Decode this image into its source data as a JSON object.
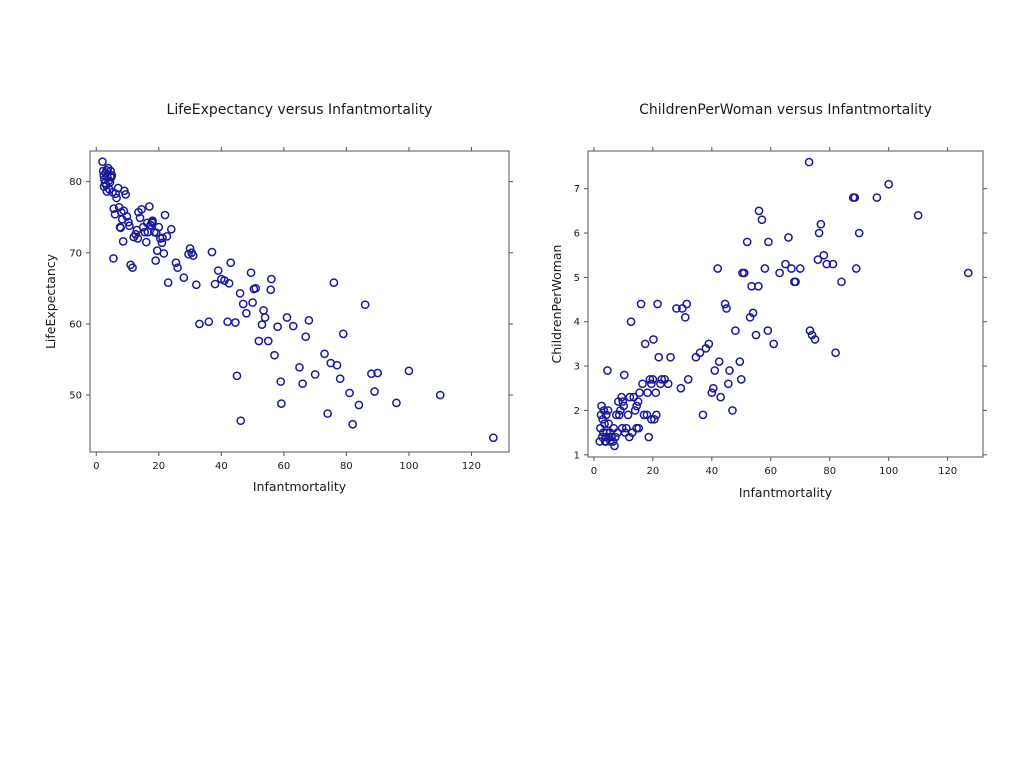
{
  "chart_data": [
    {
      "type": "scatter",
      "title": "LifeExpectancy versus Infantmortality",
      "xlabel": "Infantmortality",
      "ylabel": "LifeExpectancy",
      "xlim": [
        -2,
        132
      ],
      "ylim": [
        42,
        84.3
      ],
      "xticks": [
        "0",
        "20",
        "40",
        "60",
        "80",
        "100",
        "120"
      ],
      "yticks": [
        "50",
        "60",
        "70",
        "80"
      ],
      "marker_color": "#1a1a99",
      "grid": false,
      "points": [
        [
          2,
          82.8
        ],
        [
          2.2,
          81.5
        ],
        [
          2.4,
          80.9
        ],
        [
          2.6,
          80.3
        ],
        [
          2.8,
          79.8
        ],
        [
          3,
          81.2
        ],
        [
          3.2,
          79.5
        ],
        [
          3.4,
          78.6
        ],
        [
          3.6,
          80.6
        ],
        [
          3.8,
          81.9
        ],
        [
          4,
          80.1
        ],
        [
          4.2,
          78.9
        ],
        [
          4.4,
          79.9
        ],
        [
          4.6,
          81.5
        ],
        [
          4.8,
          80.6
        ],
        [
          5,
          80.9
        ],
        [
          5.2,
          78.5
        ],
        [
          5.6,
          76.2
        ],
        [
          6,
          75.4
        ],
        [
          6.5,
          77.7
        ],
        [
          7,
          79.1
        ],
        [
          7.3,
          76.4
        ],
        [
          7.6,
          73.6
        ],
        [
          8,
          75.7
        ],
        [
          8.3,
          74.7
        ],
        [
          8.6,
          71.6
        ],
        [
          9,
          78.7
        ],
        [
          9.4,
          78.2
        ],
        [
          9.8,
          75.1
        ],
        [
          10.3,
          74.3
        ],
        [
          10.6,
          73.8
        ],
        [
          11,
          68.3
        ],
        [
          11.6,
          67.9
        ],
        [
          12,
          72.2
        ],
        [
          12.6,
          72.6
        ],
        [
          13,
          73.2
        ],
        [
          13.5,
          75.7
        ],
        [
          14,
          74.9
        ],
        [
          14.5,
          76.1
        ],
        [
          15,
          73.6
        ],
        [
          15.5,
          72.9
        ],
        [
          16,
          71.5
        ],
        [
          16.5,
          72.9
        ],
        [
          17,
          76.5
        ],
        [
          17.4,
          73.9
        ],
        [
          18,
          74.5
        ],
        [
          18.6,
          72.9
        ],
        [
          19,
          68.9
        ],
        [
          19.5,
          70.3
        ],
        [
          20,
          73.6
        ],
        [
          20.5,
          72
        ],
        [
          21,
          71.4
        ],
        [
          21.6,
          69.9
        ],
        [
          22,
          75.3
        ],
        [
          22.6,
          72.3
        ],
        [
          23,
          65.8
        ],
        [
          24,
          73.3
        ],
        [
          26,
          67.9
        ],
        [
          28,
          66.5
        ],
        [
          30,
          70.6
        ],
        [
          31,
          69.6
        ],
        [
          32,
          65.5
        ],
        [
          36,
          60.3
        ],
        [
          37,
          70.1
        ],
        [
          38,
          65.6
        ],
        [
          39,
          67.5
        ],
        [
          40,
          66.3
        ],
        [
          41,
          66.1
        ],
        [
          42,
          60.3
        ],
        [
          42.5,
          65.7
        ],
        [
          43,
          68.6
        ],
        [
          45,
          52.7
        ],
        [
          46,
          64.3
        ],
        [
          47,
          62.8
        ],
        [
          48,
          61.5
        ],
        [
          49.5,
          67.2
        ],
        [
          50,
          63
        ],
        [
          51,
          65
        ],
        [
          52,
          57.6
        ],
        [
          53,
          59.9
        ],
        [
          54,
          60.9
        ],
        [
          55,
          57.6
        ],
        [
          56,
          66.3
        ],
        [
          57,
          55.6
        ],
        [
          58,
          59.6
        ],
        [
          59,
          51.9
        ],
        [
          61,
          60.9
        ],
        [
          63,
          59.7
        ],
        [
          65,
          53.9
        ],
        [
          66,
          51.6
        ],
        [
          67,
          58.2
        ],
        [
          68,
          60.5
        ],
        [
          70,
          52.9
        ],
        [
          73,
          55.8
        ],
        [
          74,
          47.4
        ],
        [
          75,
          54.5
        ],
        [
          76,
          65.8
        ],
        [
          77,
          54.2
        ],
        [
          78,
          52.3
        ],
        [
          79,
          58.6
        ],
        [
          82,
          45.9
        ],
        [
          84,
          48.6
        ],
        [
          88,
          53
        ],
        [
          89,
          50.5
        ],
        [
          90,
          53.1
        ],
        [
          96,
          48.9
        ],
        [
          100,
          53.4
        ],
        [
          110,
          50
        ],
        [
          127,
          44
        ],
        [
          18,
          74.2
        ],
        [
          19.2,
          72.8
        ],
        [
          21.2,
          72.1
        ],
        [
          30.5,
          70
        ],
        [
          33,
          60
        ],
        [
          2.5,
          79.3
        ],
        [
          3.3,
          81.6
        ],
        [
          4.5,
          80.7
        ],
        [
          6.2,
          78.3
        ],
        [
          7.8,
          73.5
        ],
        [
          13.3,
          72
        ],
        [
          17.8,
          74.3
        ],
        [
          29.5,
          69.8
        ],
        [
          44.5,
          60.2
        ],
        [
          46.2,
          46.4
        ],
        [
          50.4,
          64.9
        ],
        [
          53.5,
          61.9
        ],
        [
          55.8,
          64.8
        ],
        [
          59.2,
          48.8
        ],
        [
          81,
          50.3
        ],
        [
          86,
          62.7
        ],
        [
          5.5,
          69.2
        ],
        [
          8.8,
          75.9
        ],
        [
          16.3,
          74.2
        ],
        [
          25.5,
          68.6
        ]
      ]
    },
    {
      "type": "scatter",
      "title": "ChildrenPerWoman versus Infantmortality",
      "xlabel": "Infantmortality",
      "ylabel": "ChildrenPerWoman",
      "xlim": [
        -2,
        132
      ],
      "ylim": [
        0.95,
        7.85
      ],
      "xticks": [
        "0",
        "20",
        "40",
        "60",
        "80",
        "100",
        "120"
      ],
      "yticks": [
        "1",
        "2",
        "3",
        "4",
        "5",
        "6",
        "7"
      ],
      "marker_color": "#1a1a99",
      "grid": false,
      "points": [
        [
          2,
          1.3
        ],
        [
          2.2,
          1.6
        ],
        [
          2.4,
          1.9
        ],
        [
          2.6,
          2.1
        ],
        [
          2.8,
          1.4
        ],
        [
          3,
          1.8
        ],
        [
          3.2,
          1.5
        ],
        [
          3.4,
          2
        ],
        [
          3.6,
          1.7
        ],
        [
          3.8,
          1.3
        ],
        [
          4,
          1.4
        ],
        [
          4.2,
          1.9
        ],
        [
          4.4,
          1.5
        ],
        [
          4.6,
          2.9
        ],
        [
          4.8,
          2
        ],
        [
          5,
          1.7
        ],
        [
          5.2,
          1.4
        ],
        [
          5.6,
          1.3
        ],
        [
          6,
          1.4
        ],
        [
          6.5,
          1.3
        ],
        [
          7,
          1.2
        ],
        [
          7.3,
          1.4
        ],
        [
          7.6,
          1.9
        ],
        [
          8,
          1.5
        ],
        [
          8.3,
          2.2
        ],
        [
          8.6,
          1.9
        ],
        [
          9,
          2
        ],
        [
          9.4,
          2.3
        ],
        [
          9.8,
          2.2
        ],
        [
          10.3,
          2.8
        ],
        [
          10.6,
          1.5
        ],
        [
          11,
          1.6
        ],
        [
          11.6,
          1.9
        ],
        [
          12,
          1.4
        ],
        [
          12.6,
          4
        ],
        [
          13,
          1.5
        ],
        [
          13.5,
          2.3
        ],
        [
          14,
          2
        ],
        [
          14.5,
          1.6
        ],
        [
          15,
          2.2
        ],
        [
          15.5,
          2.4
        ],
        [
          16,
          4.4
        ],
        [
          16.5,
          2.6
        ],
        [
          17,
          1.9
        ],
        [
          17.4,
          3.5
        ],
        [
          18,
          1.9
        ],
        [
          18.6,
          1.4
        ],
        [
          19,
          2.7
        ],
        [
          19.5,
          2.6
        ],
        [
          20,
          2.7
        ],
        [
          20.5,
          1.8
        ],
        [
          21,
          2.4
        ],
        [
          21.6,
          4.4
        ],
        [
          22,
          3.2
        ],
        [
          22.6,
          2.6
        ],
        [
          23,
          2.7
        ],
        [
          24,
          2.7
        ],
        [
          26,
          3.2
        ],
        [
          28,
          4.3
        ],
        [
          30,
          4.3
        ],
        [
          31,
          4.1
        ],
        [
          32,
          2.7
        ],
        [
          36,
          3.3
        ],
        [
          37,
          1.9
        ],
        [
          38,
          3.4
        ],
        [
          39,
          3.5
        ],
        [
          40,
          2.4
        ],
        [
          41,
          2.9
        ],
        [
          42,
          5.2
        ],
        [
          42.5,
          3.1
        ],
        [
          43,
          2.3
        ],
        [
          45,
          4.3
        ],
        [
          46,
          2.9
        ],
        [
          47,
          2
        ],
        [
          48,
          3.8
        ],
        [
          49.5,
          3.1
        ],
        [
          50,
          2.7
        ],
        [
          51,
          5.1
        ],
        [
          52,
          5.8
        ],
        [
          53,
          4.1
        ],
        [
          54,
          4.2
        ],
        [
          55,
          3.7
        ],
        [
          56,
          6.5
        ],
        [
          57,
          6.3
        ],
        [
          58,
          5.2
        ],
        [
          59,
          3.8
        ],
        [
          61,
          3.5
        ],
        [
          63,
          5.1
        ],
        [
          65,
          5.3
        ],
        [
          66,
          5.9
        ],
        [
          67,
          5.2
        ],
        [
          68,
          4.9
        ],
        [
          70,
          5.2
        ],
        [
          73,
          7.6
        ],
        [
          74,
          3.7
        ],
        [
          75,
          3.6
        ],
        [
          76,
          5.4
        ],
        [
          77,
          6.2
        ],
        [
          78,
          5.5
        ],
        [
          79,
          5.3
        ],
        [
          82,
          3.3
        ],
        [
          84,
          4.9
        ],
        [
          88,
          6.8
        ],
        [
          89,
          5.2
        ],
        [
          90,
          6
        ],
        [
          96,
          6.8
        ],
        [
          100,
          7.1
        ],
        [
          110,
          6.4
        ],
        [
          127,
          5.1
        ],
        [
          44.5,
          4.4
        ],
        [
          50.4,
          5.1
        ],
        [
          53.5,
          4.8
        ],
        [
          55.8,
          4.8
        ],
        [
          59.2,
          5.8
        ],
        [
          68.4,
          4.9
        ],
        [
          73.3,
          3.8
        ],
        [
          76.4,
          6
        ],
        [
          81.1,
          5.3
        ],
        [
          88.5,
          6.8
        ],
        [
          15.2,
          1.6
        ],
        [
          18.2,
          2.4
        ],
        [
          21.2,
          1.9
        ],
        [
          25.2,
          2.6
        ],
        [
          29.5,
          2.5
        ],
        [
          31.5,
          4.4
        ],
        [
          34.6,
          3.2
        ],
        [
          40.5,
          2.5
        ],
        [
          45.6,
          2.6
        ],
        [
          19.5,
          1.8
        ],
        [
          20.2,
          3.6
        ],
        [
          10.1,
          2.1
        ],
        [
          12.2,
          2.3
        ],
        [
          14.5,
          2.1
        ],
        [
          4.1,
          1.3
        ],
        [
          5.5,
          1.5
        ],
        [
          6.7,
          1.6
        ],
        [
          9.6,
          1.6
        ]
      ]
    }
  ]
}
